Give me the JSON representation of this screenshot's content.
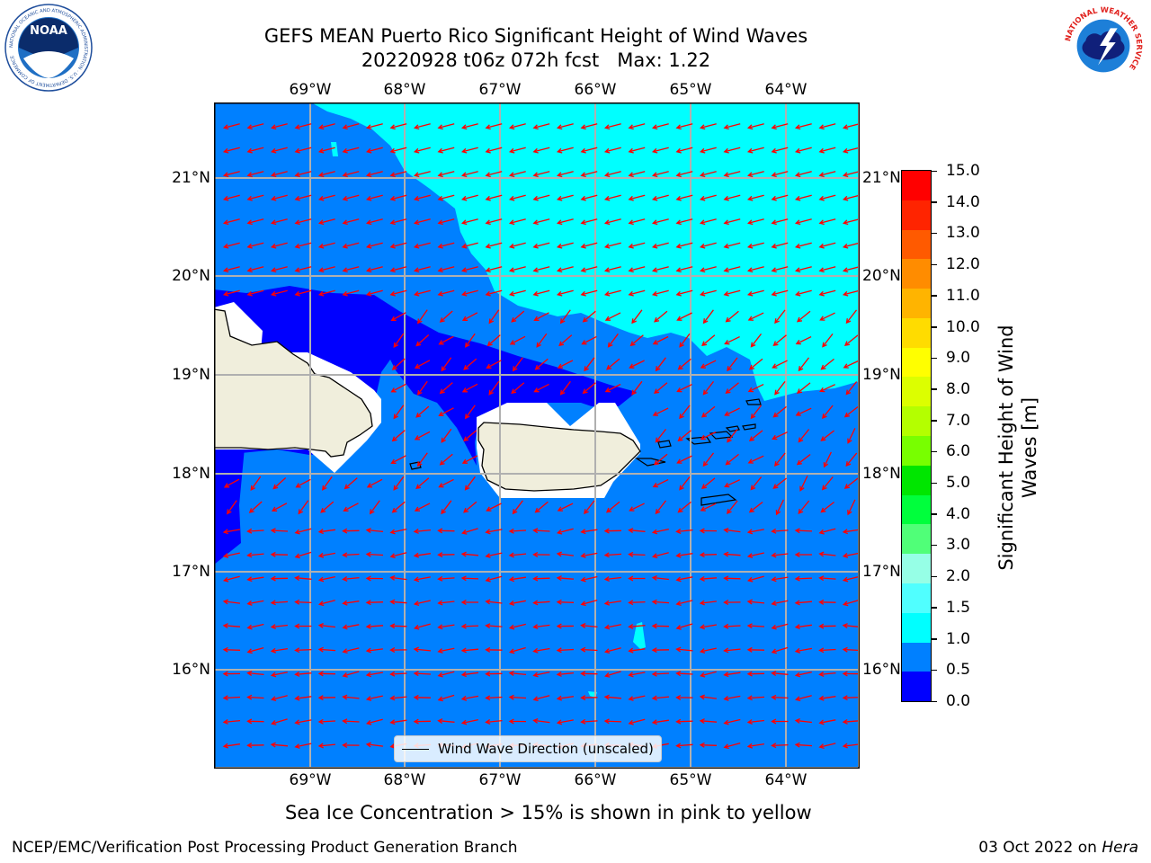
{
  "header": {
    "title_line1": "GEFS MEAN Puerto Rico Significant Height of Wind Waves",
    "title_line2": "20220928 t06z 072h fcst   Max: 1.22"
  },
  "logos": {
    "left": {
      "name": "noaa-logo",
      "text": "NOAA",
      "ring_text": "NATIONAL OCEANIC AND ATMOSPHERIC ADMINISTRATION · U.S. DEPARTMENT OF COMMERCE"
    },
    "right": {
      "name": "nws-logo",
      "ring_text": "NATIONAL WEATHER SERVICE"
    }
  },
  "map": {
    "lon_ticks": [
      "69°W",
      "68°W",
      "67°W",
      "66°W",
      "65°W",
      "64°W"
    ],
    "lat_ticks": [
      "21°N",
      "20°N",
      "19°N",
      "18°N",
      "17°N",
      "16°N"
    ],
    "legend_label": "Wind Wave Direction (unscaled)",
    "colors": {
      "sea_0_5": "#0000ff",
      "sea_0_5_1": "#0080ff",
      "sea_1_1_5": "#00ffff",
      "land": "#f0eedc",
      "arrow": "#ff0000",
      "grid": "#b0b0b0"
    }
  },
  "colorbar": {
    "label_line1": "Significant Height of Wind",
    "label_line2": "Waves [m]",
    "ticks": [
      "15.0",
      "14.0",
      "13.0",
      "12.0",
      "11.0",
      "10.0",
      "9.0",
      "8.0",
      "7.0",
      "6.0",
      "5.0",
      "4.0",
      "3.0",
      "2.0",
      "1.5",
      "1.0",
      "0.5",
      "0.0"
    ],
    "colors_top_to_bottom": [
      "#ff0000",
      "#ff2400",
      "#ff5a00",
      "#ff8c00",
      "#ffb400",
      "#ffdc00",
      "#ffff00",
      "#dcff00",
      "#b4ff00",
      "#78ff00",
      "#00e600",
      "#00ff3c",
      "#50ff78",
      "#96ffe6",
      "#50ffff",
      "#00ffff",
      "#0080ff",
      "#0000ff"
    ]
  },
  "notes": {
    "sea_ice": "Sea Ice Concentration > 15% is shown in pink to yellow"
  },
  "footer": {
    "left": "NCEP/EMC/Verification Post Processing Product Generation Branch",
    "right_prefix": "03 Oct 2022 on ",
    "right_italic": "Hera"
  }
}
